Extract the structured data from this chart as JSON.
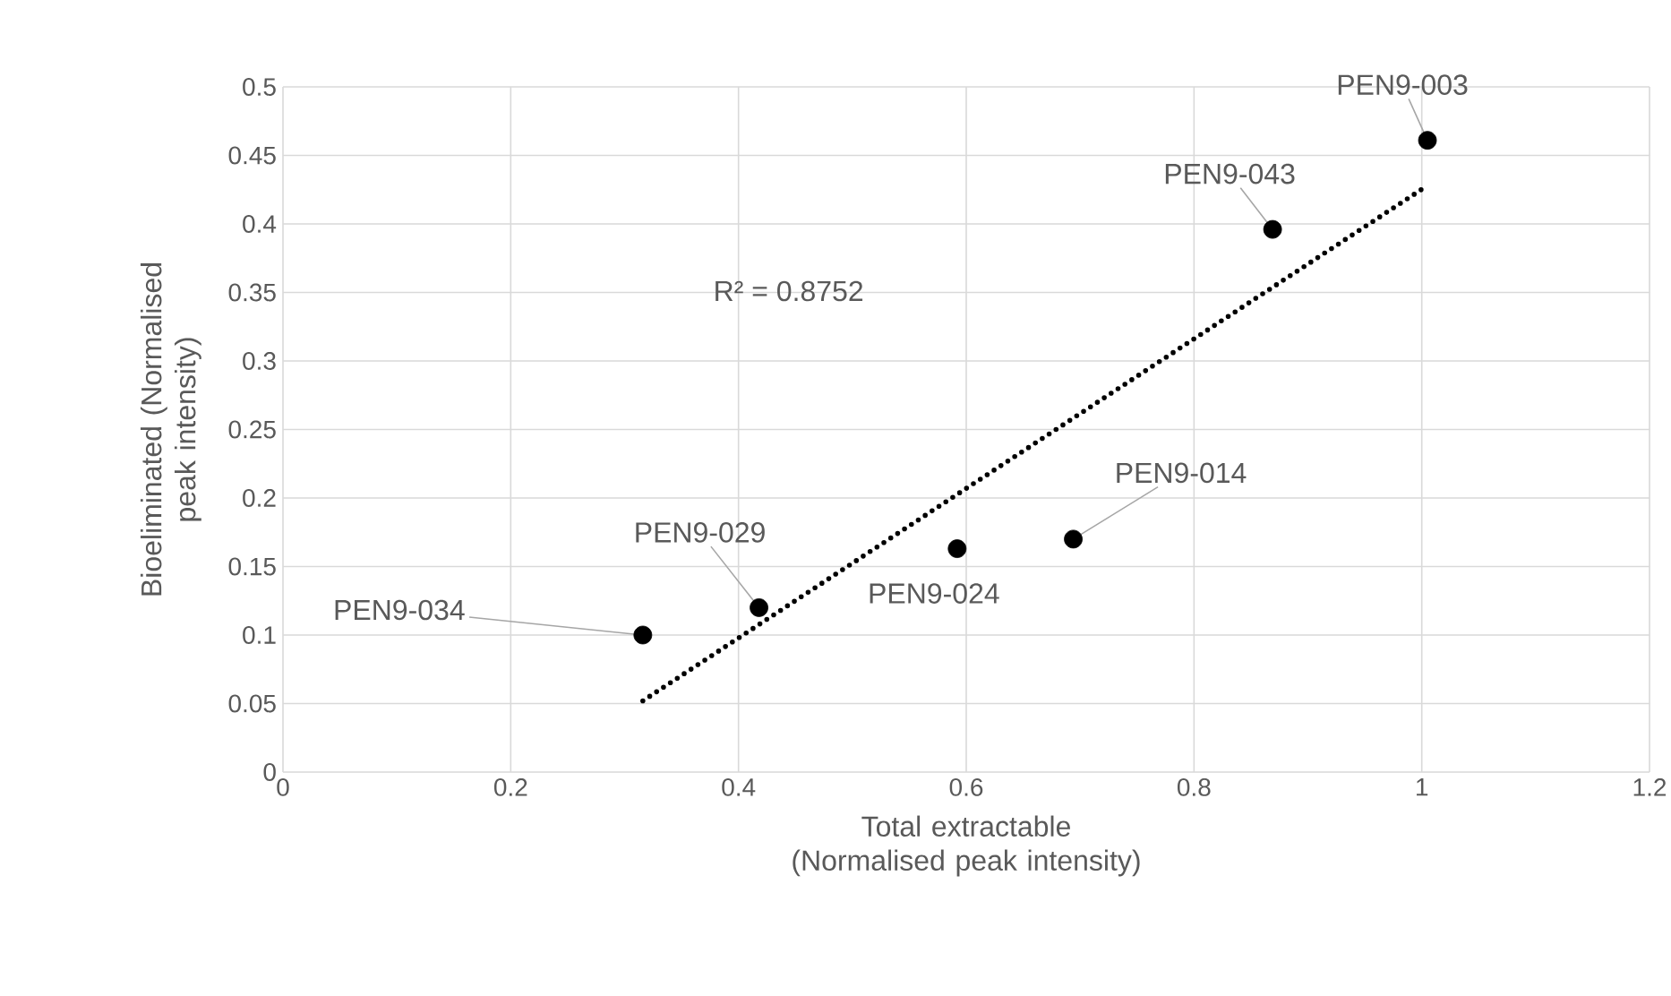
{
  "chart_data": {
    "type": "scatter",
    "xlabel": "Total extractable (Normalised peak intensity)",
    "ylabel": "Bioeliminated (Normalised peak intensity)",
    "series": [
      {
        "color": "#000000",
        "marker": "circle",
        "x": [
          0.316,
          0.418,
          0.592,
          0.694,
          0.869,
          1.005
        ],
        "values": [
          0.1,
          0.12,
          0.163,
          0.17,
          0.396,
          0.461
        ]
      },
      {
        "type": "line",
        "color": "#000000",
        "line_style": "dotted",
        "marker": "none",
        "x": [
          0.316,
          1.005
        ],
        "values": [
          0.052,
          0.428
        ]
      }
    ],
    "xlim": [
      0,
      1.2
    ],
    "xticks": [
      0,
      0.2,
      0.4,
      0.6,
      0.8,
      1,
      1.2
    ],
    "ylim": [
      0,
      0.5
    ],
    "yticks": [
      0,
      0.05,
      0.1,
      0.15,
      0.2,
      0.25,
      0.3,
      0.35,
      0.4,
      0.45,
      0.5
    ],
    "grid": true,
    "annotations": [
      {
        "text": "PEN9-034",
        "x": 0.316,
        "y": 0.1
      },
      {
        "text": "PEN9-029",
        "x": 0.418,
        "y": 0.12
      },
      {
        "text": "PEN9-024",
        "x": 0.592,
        "y": 0.163
      },
      {
        "text": "PEN9-014",
        "x": 0.694,
        "y": 0.17
      },
      {
        "text": "PEN9-043",
        "x": 0.869,
        "y": 0.396
      },
      {
        "text": "PEN9-003",
        "x": 1.005,
        "y": 0.461
      },
      "R² = 0.8752"
    ]
  }
}
